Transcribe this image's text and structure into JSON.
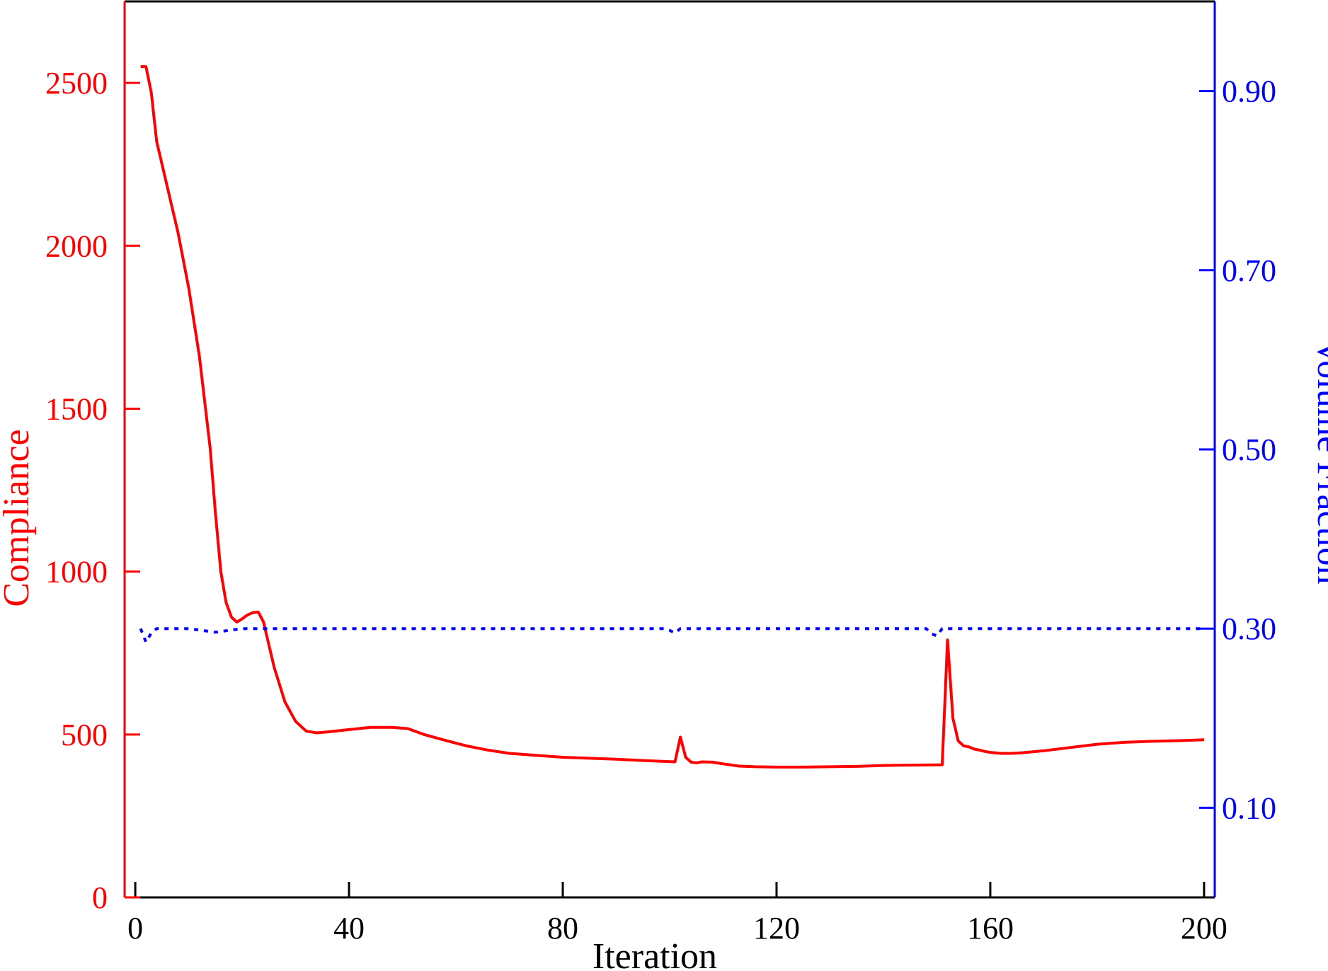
{
  "chart_data": {
    "type": "line",
    "xlabel": "Iteration",
    "ylabel_left": "Compliance",
    "ylabel_right": "Volume Fraction",
    "xlim": [
      -2,
      202
    ],
    "ylim_left": [
      0,
      2750
    ],
    "ylim_right": [
      0.0,
      1.0
    ],
    "x_ticks": [
      0,
      40,
      80,
      120,
      160,
      200
    ],
    "y_ticks_left": [
      0,
      500,
      1000,
      1500,
      2000,
      2500
    ],
    "y_ticks_right": [
      0.1,
      0.3,
      0.5,
      0.7,
      0.9
    ],
    "y_tick_labels_right": [
      "0.10",
      "0.30",
      "0.50",
      "0.70",
      "0.90"
    ],
    "grid": false,
    "colors": {
      "compliance": "#ff0000",
      "volume": "#0000ff",
      "frame": "#000000"
    },
    "series": [
      {
        "axis": "left",
        "style": "solid",
        "x": [
          1,
          2,
          3,
          4,
          6,
          8,
          10,
          12,
          14,
          15,
          16,
          17,
          18,
          19,
          20,
          21,
          22,
          23,
          24,
          25,
          26,
          28,
          30,
          32,
          34,
          36,
          40,
          44,
          48,
          51,
          54,
          58,
          62,
          66,
          70,
          75,
          80,
          85,
          90,
          95,
          101,
          102,
          103,
          104,
          105,
          106,
          108,
          110,
          113,
          116,
          120,
          125,
          130,
          135,
          140,
          145,
          151,
          152,
          153,
          154,
          155,
          156,
          157,
          158,
          159,
          160,
          162,
          164,
          166,
          170,
          175,
          180,
          185,
          190,
          195,
          200
        ],
        "values": [
          2550,
          2550,
          2470,
          2320,
          2180,
          2040,
          1870,
          1660,
          1380,
          1180,
          1000,
          905,
          860,
          845,
          855,
          867,
          874,
          876,
          845,
          775,
          705,
          600,
          540,
          510,
          505,
          508,
          515,
          522,
          522,
          518,
          500,
          482,
          465,
          452,
          442,
          436,
          430,
          427,
          424,
          420,
          416,
          492,
          430,
          415,
          413,
          416,
          415,
          410,
          403,
          401,
          400,
          400,
          401,
          402,
          405,
          406,
          407,
          790,
          550,
          480,
          465,
          462,
          455,
          452,
          448,
          445,
          442,
          442,
          444,
          450,
          460,
          470,
          476,
          479,
          481,
          484
        ]
      },
      {
        "axis": "right",
        "style": "dotted",
        "x": [
          1,
          2,
          3,
          4,
          6,
          10,
          15,
          20,
          25,
          30,
          40,
          50,
          60,
          70,
          80,
          90,
          99,
          100,
          101,
          102,
          110,
          120,
          130,
          140,
          148,
          149,
          150,
          151,
          152,
          160,
          170,
          180,
          190,
          200
        ],
        "values": [
          0.3,
          0.285,
          0.295,
          0.3,
          0.3,
          0.3,
          0.296,
          0.3,
          0.3,
          0.3,
          0.3,
          0.3,
          0.3,
          0.3,
          0.3,
          0.3,
          0.3,
          0.298,
          0.295,
          0.3,
          0.3,
          0.3,
          0.3,
          0.3,
          0.3,
          0.294,
          0.292,
          0.3,
          0.3,
          0.3,
          0.3,
          0.3,
          0.3,
          0.3
        ]
      }
    ]
  }
}
